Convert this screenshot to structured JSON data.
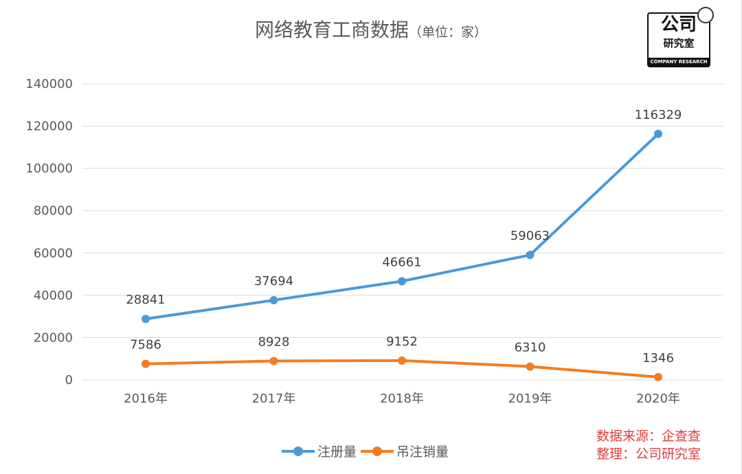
{
  "chart_data": {
    "type": "line",
    "title": "网络教育工商数据",
    "subtitle": "（单位：家）",
    "categories": [
      "2016年",
      "2017年",
      "2018年",
      "2019年",
      "2020年"
    ],
    "series": [
      {
        "name": "注册量",
        "color": "#4a9ad8",
        "values": [
          28841,
          37694,
          46661,
          59063,
          116329
        ]
      },
      {
        "name": "吊注销量",
        "color": "#f57c1f",
        "values": [
          7586,
          8928,
          9152,
          6310,
          1346
        ]
      }
    ],
    "yticks": [
      0,
      20000,
      40000,
      60000,
      80000,
      100000,
      120000,
      140000
    ],
    "ylim": [
      0,
      140000
    ],
    "grid": true,
    "legend": "bottom"
  },
  "source": {
    "line1": "数据来源：企查查",
    "line2": "整理：公司研究室"
  },
  "logo": {
    "top": "公司",
    "middle": "研究室",
    "english": "COMPANY RESEARCH"
  }
}
